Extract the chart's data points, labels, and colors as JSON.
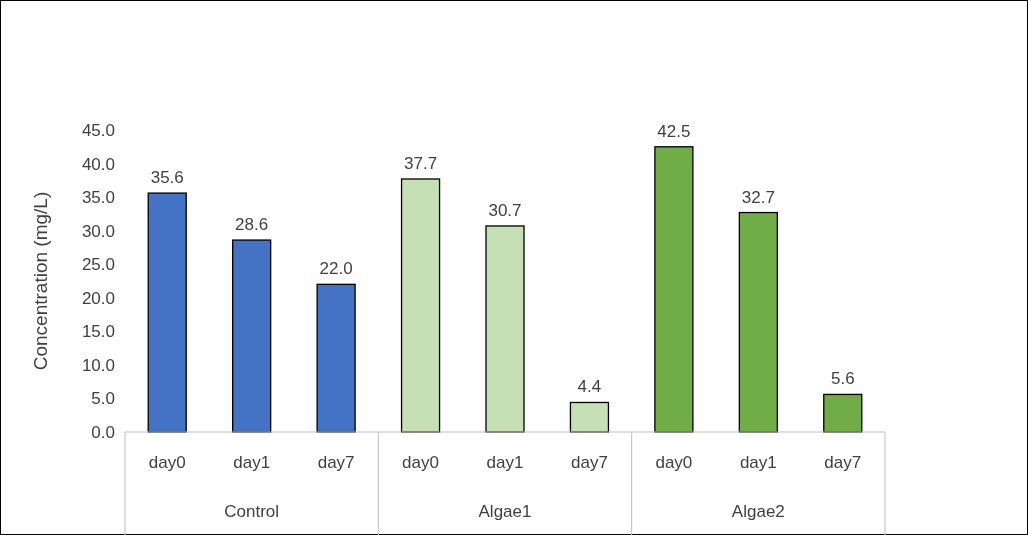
{
  "chart_data": {
    "type": "bar",
    "ylabel": "Concentration (mg/L)",
    "categories": [
      "day0",
      "day1",
      "day7",
      "day0",
      "day1",
      "day7",
      "day0",
      "day1",
      "day7"
    ],
    "values": [
      35.6,
      28.6,
      22.0,
      37.7,
      30.7,
      4.4,
      42.5,
      32.7,
      5.6
    ],
    "colors": [
      "#4472c4",
      "#4472c4",
      "#4472c4",
      "#c5e0b4",
      "#c5e0b4",
      "#c5e0b4",
      "#70ad47",
      "#70ad47",
      "#70ad47"
    ],
    "value_labels": [
      "35.6",
      "28.6",
      "22.0",
      "37.7",
      "30.7",
      "4.4",
      "42.5",
      "32.7",
      "5.6"
    ],
    "annotations": [
      "Control",
      "Algae1",
      "Algae2"
    ],
    "ylim": [
      0,
      45
    ],
    "yticks": [
      {
        "value": 0,
        "label": "0.0"
      },
      {
        "value": 5,
        "label": "5.0"
      },
      {
        "value": 10,
        "label": "10.0"
      },
      {
        "value": 15,
        "label": "15.0"
      },
      {
        "value": 20,
        "label": "20.0"
      },
      {
        "value": 25,
        "label": "25.0"
      },
      {
        "value": 30,
        "label": "30.0"
      },
      {
        "value": 35,
        "label": "35.0"
      },
      {
        "value": 40,
        "label": "40.0"
      },
      {
        "value": 45,
        "label": "45.0"
      }
    ],
    "grid": false
  }
}
